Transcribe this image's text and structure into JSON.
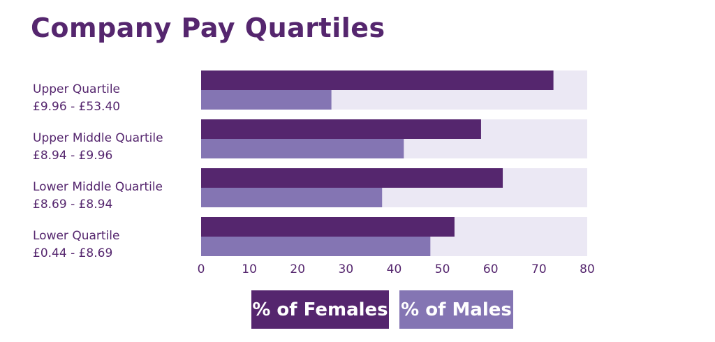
{
  "chart_data": {
    "type": "bar",
    "orientation": "horizontal",
    "title": "Company Pay Quartiles",
    "categories": [
      {
        "name": "Upper Quartile",
        "range": "£9.96 - £53.40"
      },
      {
        "name": "Upper Middle Quartile",
        "range": "£8.94 - £9.96"
      },
      {
        "name": "Lower Middle Quartile",
        "range": "£8.69 - £8.94"
      },
      {
        "name": "Lower Quartile",
        "range": "£0.44 - £8.69"
      }
    ],
    "series": [
      {
        "name": "% of Females",
        "color": "#55266e",
        "values": [
          73,
          58,
          62.5,
          52.5
        ]
      },
      {
        "name": "% of Males",
        "color": "#8475b3",
        "values": [
          27,
          42,
          37.5,
          47.5
        ]
      }
    ],
    "xlim": [
      0,
      80
    ],
    "xticks": [
      "0",
      "10",
      "20",
      "30",
      "40",
      "50",
      "60",
      "70",
      "80"
    ],
    "track_color": "#ebe8f4",
    "legend_position": "bottom"
  }
}
